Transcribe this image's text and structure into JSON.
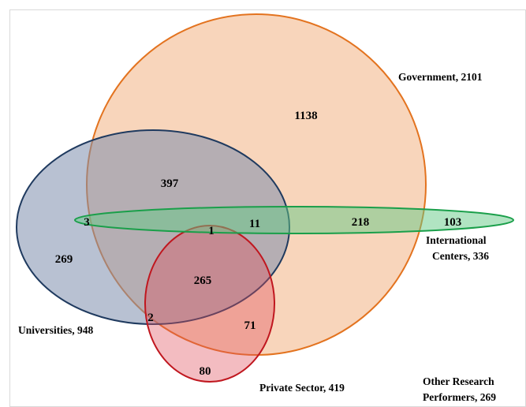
{
  "sets": {
    "government": {
      "label": "Government, 2101",
      "fill": "#f6c9a8",
      "stroke": "#e3731f"
    },
    "universities": {
      "label": "Universities, 948",
      "fill": "#a4b0c5",
      "stroke": "#1f3a5f"
    },
    "international": {
      "label_line1": "International",
      "label_line2": "Centers, 336",
      "fill": "#92d7a5",
      "stroke": "#1a9f4a"
    },
    "private_sector": {
      "label": "Private Sector, 419",
      "fill": "#e47a82",
      "stroke": "#c0171f"
    }
  },
  "other": {
    "label_line1": "Other Research",
    "label_line2": "Performers, 269"
  },
  "regions": {
    "gov_only": "1138",
    "gov_univ": "397",
    "univ_intl": "3",
    "univ_only": "269",
    "gov_univ_intl_priv": "1",
    "gov_univ_intl": "11",
    "gov_intl": "218",
    "intl_only": "103",
    "gov_univ_priv": "265",
    "univ_priv": "2",
    "gov_priv": "71",
    "priv_only": "80"
  },
  "colors": {
    "frame": "#d9d9d9"
  }
}
